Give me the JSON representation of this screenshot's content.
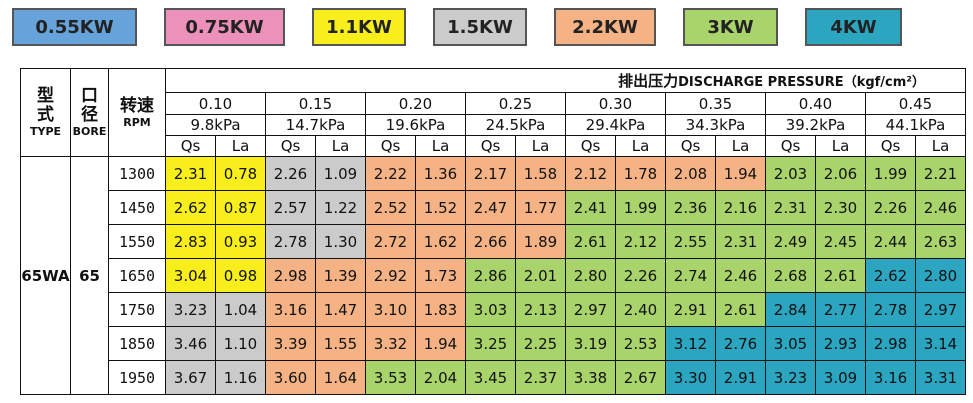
{
  "legend": [
    {
      "label": "0.55KW",
      "color": "#66a3da"
    },
    {
      "label": "0.75KW",
      "color": "#ec91b9"
    },
    {
      "label": "1.1KW",
      "color": "#f7ee1c"
    },
    {
      "label": "1.5KW",
      "color": "#cbcbcb"
    },
    {
      "label": "2.2KW",
      "color": "#f5b385"
    },
    {
      "label": "3KW",
      "color": "#a8d46b"
    },
    {
      "label": "4KW",
      "color": "#2ba5c0"
    }
  ],
  "table": {
    "header": {
      "type_cn": [
        "型",
        "式"
      ],
      "type_en": "TYPE",
      "bore_cn": [
        "口",
        "径"
      ],
      "bore_en": "BORE",
      "rpm_cn": "转速",
      "rpm_en": "RPM",
      "pressure_cn": "排出压力",
      "pressure_en": "DISCHARGE PRESSURE",
      "pressure_unit": "（kgf/cm²）"
    },
    "pressures": [
      {
        "kgf": "0.10",
        "kpa": "9.8kPa"
      },
      {
        "kgf": "0.15",
        "kpa": "14.7kPa"
      },
      {
        "kgf": "0.20",
        "kpa": "19.6kPa"
      },
      {
        "kgf": "0.25",
        "kpa": "24.5kPa"
      },
      {
        "kgf": "0.30",
        "kpa": "29.4kPa"
      },
      {
        "kgf": "0.35",
        "kpa": "34.3kPa"
      },
      {
        "kgf": "0.40",
        "kpa": "39.2kPa"
      },
      {
        "kgf": "0.45",
        "kpa": "44.1kPa"
      }
    ],
    "sub_headers": [
      "Qs",
      "La"
    ],
    "group": {
      "type": "65WA",
      "bore": "65"
    },
    "rows": [
      {
        "rpm": "1300",
        "cells": [
          "2.31",
          "0.78",
          "2.26",
          "1.09",
          "2.22",
          "1.36",
          "2.17",
          "1.58",
          "2.12",
          "1.78",
          "2.08",
          "1.94",
          "2.03",
          "2.06",
          "1.99",
          "2.21"
        ],
        "colors": [
          "#f7ee1c",
          "#cbcbcb",
          "#f5b385",
          "#f5b385",
          "#f5b385",
          "#f5b385",
          "#a8d46b",
          "#a8d46b"
        ]
      },
      {
        "rpm": "1450",
        "cells": [
          "2.62",
          "0.87",
          "2.57",
          "1.22",
          "2.52",
          "1.52",
          "2.47",
          "1.77",
          "2.41",
          "1.99",
          "2.36",
          "2.16",
          "2.31",
          "2.30",
          "2.26",
          "2.46"
        ],
        "colors": [
          "#f7ee1c",
          "#cbcbcb",
          "#f5b385",
          "#f5b385",
          "#a8d46b",
          "#a8d46b",
          "#a8d46b",
          "#a8d46b"
        ]
      },
      {
        "rpm": "1550",
        "cells": [
          "2.83",
          "0.93",
          "2.78",
          "1.30",
          "2.72",
          "1.62",
          "2.66",
          "1.89",
          "2.61",
          "2.12",
          "2.55",
          "2.31",
          "2.49",
          "2.45",
          "2.44",
          "2.63"
        ],
        "colors": [
          "#f7ee1c",
          "#cbcbcb",
          "#f5b385",
          "#f5b385",
          "#a8d46b",
          "#a8d46b",
          "#a8d46b",
          "#a8d46b"
        ]
      },
      {
        "rpm": "1650",
        "cells": [
          "3.04",
          "0.98",
          "2.98",
          "1.39",
          "2.92",
          "1.73",
          "2.86",
          "2.01",
          "2.80",
          "2.26",
          "2.74",
          "2.46",
          "2.68",
          "2.61",
          "2.62",
          "2.80"
        ],
        "colors": [
          "#f7ee1c",
          "#f5b385",
          "#f5b385",
          "#a8d46b",
          "#a8d46b",
          "#a8d46b",
          "#a8d46b",
          "#2ba5c0"
        ]
      },
      {
        "rpm": "1750",
        "cells": [
          "3.23",
          "1.04",
          "3.16",
          "1.47",
          "3.10",
          "1.83",
          "3.03",
          "2.13",
          "2.97",
          "2.40",
          "2.91",
          "2.61",
          "2.84",
          "2.77",
          "2.78",
          "2.97"
        ],
        "colors": [
          "#cbcbcb",
          "#f5b385",
          "#f5b385",
          "#a8d46b",
          "#a8d46b",
          "#a8d46b",
          "#2ba5c0",
          "#2ba5c0"
        ]
      },
      {
        "rpm": "1850",
        "cells": [
          "3.46",
          "1.10",
          "3.39",
          "1.55",
          "3.32",
          "1.94",
          "3.25",
          "2.25",
          "3.19",
          "2.53",
          "3.12",
          "2.76",
          "3.05",
          "2.93",
          "2.98",
          "3.14"
        ],
        "colors": [
          "#cbcbcb",
          "#f5b385",
          "#f5b385",
          "#a8d46b",
          "#a8d46b",
          "#2ba5c0",
          "#2ba5c0",
          "#2ba5c0"
        ]
      },
      {
        "rpm": "1950",
        "cells": [
          "3.67",
          "1.16",
          "3.60",
          "1.64",
          "3.53",
          "2.04",
          "3.45",
          "2.37",
          "3.38",
          "2.67",
          "3.30",
          "2.91",
          "3.23",
          "3.09",
          "3.16",
          "3.31"
        ],
        "colors": [
          "#cbcbcb",
          "#f5b385",
          "#a8d46b",
          "#a8d46b",
          "#a8d46b",
          "#2ba5c0",
          "#2ba5c0",
          "#2ba5c0"
        ]
      }
    ]
  }
}
